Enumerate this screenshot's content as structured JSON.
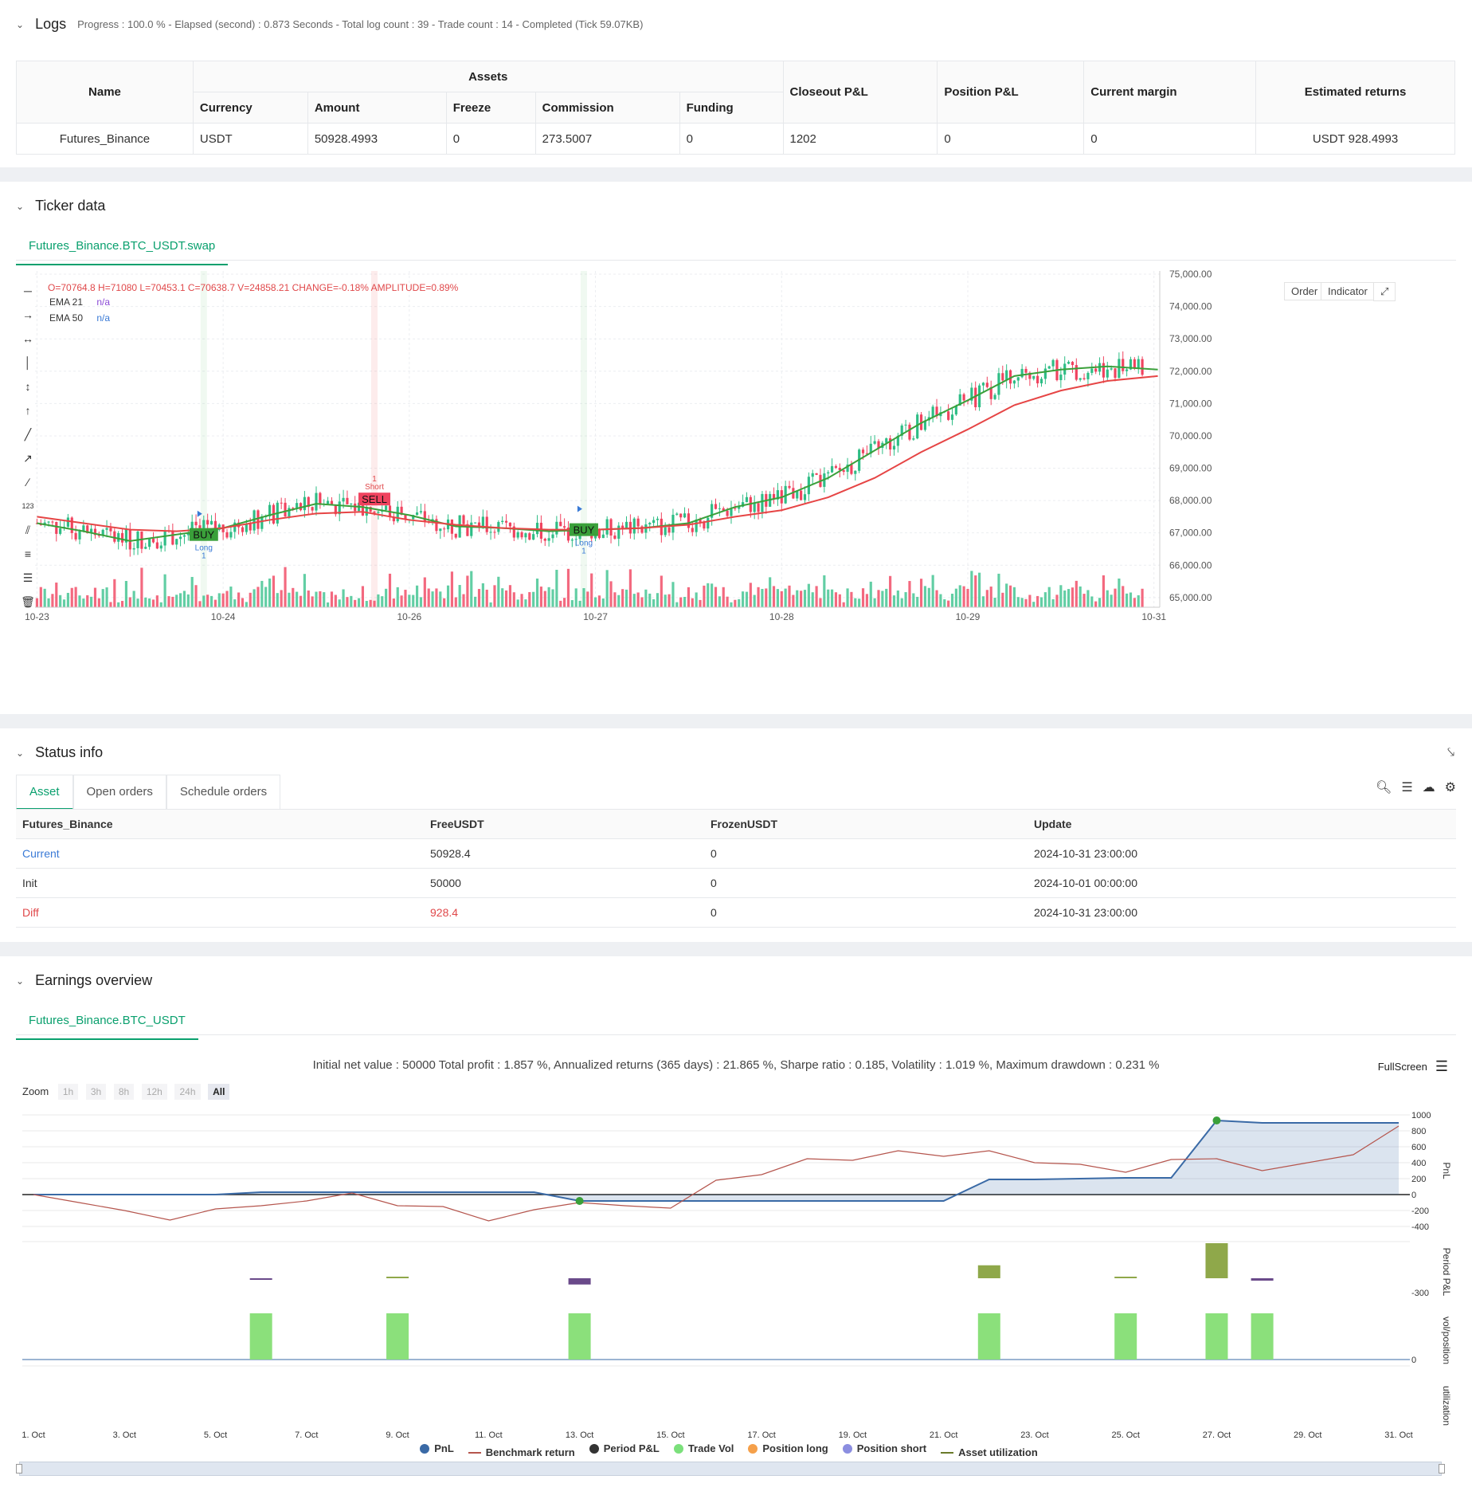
{
  "logs": {
    "title": "Logs",
    "summary": "Progress : 100.0 % - Elapsed (second) : 0.873  Seconds - Total log count : 39 - Trade count : 14 - Completed (Tick 59.07KB)",
    "assets_header": "Assets",
    "columns": {
      "name": "Name",
      "currency": "Currency",
      "amount": "Amount",
      "freeze": "Freeze",
      "commission": "Commission",
      "funding": "Funding",
      "closeout": "Closeout P&L",
      "position": "Position P&L",
      "margin": "Current margin",
      "returns": "Estimated returns"
    },
    "row": {
      "name": "Futures_Binance",
      "currency": "USDT",
      "amount": "50928.4993",
      "freeze": "0",
      "commission": "273.5007",
      "funding": "0",
      "closeout": "1202",
      "position": "0",
      "margin": "0",
      "returns": "USDT 928.4993"
    }
  },
  "ticker": {
    "title": "Ticker data",
    "tab": "Futures_Binance.BTC_USDT.swap",
    "ohlc": "O=70764.8 H=71080 L=70453.1 C=70638.7 V=24858.21 CHANGE=-0.18% AMPLITUDE=0.89%",
    "ema21_label": "EMA 21",
    "ema21_value": "n/a",
    "ema50_label": "EMA 50",
    "ema50_value": "n/a",
    "order_btn": "Order",
    "indicator_btn": "Indicator",
    "signals": {
      "buy": "BUY",
      "sell": "SELL",
      "long": "Long",
      "short": "Short",
      "one": "1"
    }
  },
  "status": {
    "title": "Status info",
    "tabs": [
      "Asset",
      "Open orders",
      "Schedule orders"
    ],
    "columns": [
      "Futures_Binance",
      "FreeUSDT",
      "FrozenUSDT",
      "Update"
    ],
    "rows": [
      {
        "label": "Current",
        "free": "50928.4",
        "frozen": "0",
        "update": "2024-10-31 23:00:00"
      },
      {
        "label": "Init",
        "free": "50000",
        "frozen": "0",
        "update": "2024-10-01 00:00:00"
      },
      {
        "label": "Diff",
        "free": "928.4",
        "frozen": "0",
        "update": "2024-10-31 23:00:00"
      }
    ]
  },
  "earnings": {
    "title": "Earnings overview",
    "tab": "Futures_Binance.BTC_USDT",
    "stats": "Initial net value : 50000 Total profit : 1.857 %, Annualized returns (365 days) : 21.865 %, Sharpe ratio : 0.185, Volatility : 1.019 %, Maximum drawdown : 0.231 %",
    "fullscreen": "FullScreen",
    "zoom_label": "Zoom",
    "zoom_options": [
      "1h",
      "3h",
      "8h",
      "12h",
      "24h",
      "All"
    ],
    "legend": [
      {
        "name": "PnL",
        "color": "#3a6aa6",
        "type": "dot"
      },
      {
        "name": "Benchmark return",
        "color": "#b5554d",
        "type": "line"
      },
      {
        "name": "Period P&L",
        "color": "#333333",
        "type": "dot"
      },
      {
        "name": "Trade Vol",
        "color": "#7be07b",
        "type": "dot"
      },
      {
        "name": "Position long",
        "color": "#f5a04a",
        "type": "dot"
      },
      {
        "name": "Position short",
        "color": "#8b8ee0",
        "type": "dot"
      },
      {
        "name": "Asset utilization",
        "color": "#6a7a2a",
        "type": "line"
      }
    ],
    "axis_labels": {
      "pnl": "PnL",
      "period": "Period P&L",
      "vol": "vol/position",
      "util": "utilization"
    }
  },
  "chart_data": [
    {
      "type": "candlestick",
      "title": "Futures_Binance.BTC_USDT.swap",
      "x_ticks": [
        "10-23",
        "10-24",
        "10-26",
        "10-27",
        "10-28",
        "10-29",
        "10-31"
      ],
      "y_ticks": [
        "75,000.00",
        "74,000.00",
        "73,000.00",
        "72,000.00",
        "71,000.00",
        "70,000.00",
        "69,000.00",
        "68,000.00",
        "67,000.00",
        "66,000.00",
        "65,000.00"
      ],
      "ylim": [
        64700,
        75100
      ],
      "series": [
        {
          "name": "EMA 21",
          "color": "#3aa03a",
          "x": [
            0,
            12,
            24,
            36,
            48,
            60,
            72,
            84,
            96,
            108,
            120,
            132,
            144,
            156,
            168,
            180,
            192,
            204,
            216,
            228,
            240,
            252,
            264,
            276,
            289
          ],
          "values": [
            67300,
            67050,
            66750,
            66950,
            67150,
            67550,
            67900,
            67800,
            67550,
            67200,
            67150,
            67050,
            67100,
            67150,
            67300,
            67800,
            68100,
            68700,
            69550,
            70400,
            71100,
            71850,
            72050,
            72150,
            72050
          ]
        },
        {
          "name": "EMA 50",
          "color": "#e64545",
          "x": [
            0,
            12,
            24,
            36,
            48,
            60,
            72,
            84,
            96,
            108,
            120,
            132,
            144,
            156,
            168,
            180,
            192,
            204,
            216,
            228,
            240,
            252,
            264,
            276,
            289
          ],
          "values": [
            67500,
            67300,
            67100,
            67050,
            67150,
            67400,
            67600,
            67650,
            67400,
            67250,
            67150,
            67100,
            67100,
            67150,
            67250,
            67500,
            67700,
            68100,
            68700,
            69500,
            70200,
            70950,
            71400,
            71700,
            71850
          ]
        }
      ],
      "signals": [
        {
          "x": 43,
          "label": "BUY",
          "side": "Long",
          "price": 66950
        },
        {
          "x": 87,
          "label": "SELL",
          "side": "Short",
          "price": 67800
        },
        {
          "x": 141,
          "label": "BUY",
          "side": "Long",
          "price": 67100
        }
      ]
    },
    {
      "type": "line",
      "title": "PnL",
      "x_ticks": [
        "1. Oct",
        "3. Oct",
        "5. Oct",
        "7. Oct",
        "9. Oct",
        "11. Oct",
        "13. Oct",
        "15. Oct",
        "17. Oct",
        "19. Oct",
        "21. Oct",
        "23. Oct",
        "25. Oct",
        "27. Oct",
        "29. Oct",
        "31. Oct"
      ],
      "y_ticks": [
        "1000",
        "800",
        "600",
        "400",
        "200",
        "0",
        "-200",
        "-400"
      ],
      "ylim": [
        -450,
        1050
      ],
      "series": [
        {
          "name": "PnL",
          "color": "#3a6aa6",
          "x": [
            1,
            4,
            5,
            6,
            9,
            10,
            12,
            13,
            16,
            17,
            18,
            19,
            20,
            21,
            22,
            23,
            25,
            26,
            27,
            28,
            29,
            30,
            31
          ],
          "values": [
            0,
            0,
            0,
            30,
            30,
            30,
            30,
            -80,
            -80,
            -80,
            -80,
            -80,
            -80,
            -80,
            190,
            190,
            210,
            210,
            930,
            900,
            900,
            900,
            900
          ]
        },
        {
          "name": "Benchmark return",
          "color": "#b5554d",
          "x": [
            1,
            2,
            3,
            4,
            5,
            6,
            7,
            8,
            9,
            10,
            11,
            12,
            13,
            14,
            15,
            16,
            17,
            18,
            19,
            20,
            21,
            22,
            23,
            24,
            25,
            26,
            27,
            28,
            29,
            30,
            31
          ],
          "values": [
            0,
            -100,
            -200,
            -320,
            -180,
            -140,
            -80,
            20,
            -140,
            -150,
            -330,
            -190,
            -100,
            -140,
            -170,
            180,
            250,
            450,
            430,
            550,
            480,
            550,
            400,
            380,
            280,
            440,
            450,
            300,
            400,
            500,
            860
          ]
        }
      ]
    },
    {
      "type": "bar",
      "title": "Period P&L",
      "y_ticks": [
        "-300"
      ],
      "x": [
        6,
        9,
        13,
        22,
        25,
        27,
        28
      ],
      "values": [
        -30,
        0,
        -130,
        270,
        0,
        730,
        -50
      ]
    },
    {
      "type": "bar",
      "title": "Trade Vol",
      "y_ticks": [
        "0"
      ],
      "x": [
        6,
        9,
        13,
        22,
        25,
        27,
        28
      ],
      "values": [
        1,
        1,
        1,
        1,
        1,
        1,
        1
      ]
    }
  ]
}
